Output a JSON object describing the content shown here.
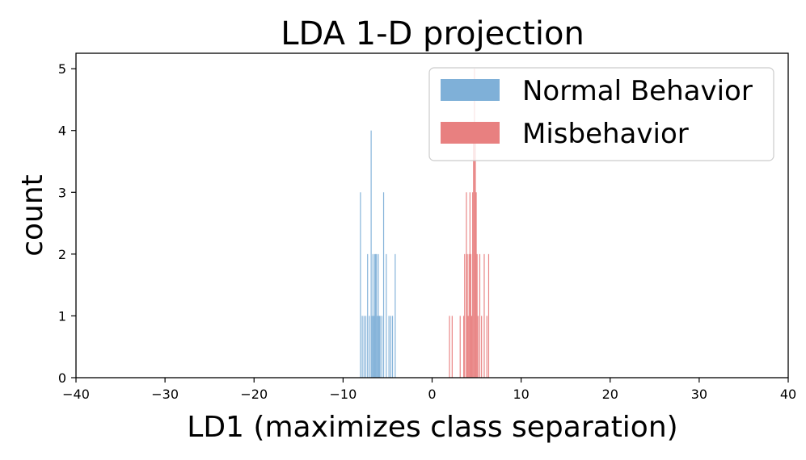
{
  "chart_data": {
    "type": "bar",
    "title": "LDA 1-D projection",
    "xlabel": "LD1 (maximizes class separation)",
    "ylabel": "count",
    "xlim": [
      -40,
      40
    ],
    "ylim": [
      0,
      5.25
    ],
    "xticks": [
      -40,
      -30,
      -20,
      -10,
      0,
      10,
      20,
      30,
      40
    ],
    "xtick_labels": [
      "−40",
      "−30",
      "−20",
      "−10",
      "0",
      "10",
      "20",
      "30",
      "40"
    ],
    "yticks": [
      0,
      1,
      2,
      3,
      4,
      5
    ],
    "ytick_labels": [
      "0",
      "1",
      "2",
      "3",
      "4",
      "5"
    ],
    "legend_position": "top-right",
    "series": [
      {
        "name": "Normal Behavior",
        "color": "#7fb0d8",
        "bin_width": 0.1,
        "bins": [
          {
            "x": -8.1,
            "count": 3
          },
          {
            "x": -7.9,
            "count": 1
          },
          {
            "x": -7.7,
            "count": 1
          },
          {
            "x": -7.5,
            "count": 1
          },
          {
            "x": -7.3,
            "count": 2
          },
          {
            "x": -7.1,
            "count": 1
          },
          {
            "x": -6.9,
            "count": 4
          },
          {
            "x": -6.8,
            "count": 1
          },
          {
            "x": -6.7,
            "count": 2
          },
          {
            "x": -6.6,
            "count": 1
          },
          {
            "x": -6.5,
            "count": 2
          },
          {
            "x": -6.4,
            "count": 2
          },
          {
            "x": -6.3,
            "count": 2
          },
          {
            "x": -6.2,
            "count": 1
          },
          {
            "x": -6.1,
            "count": 2
          },
          {
            "x": -6.0,
            "count": 1
          },
          {
            "x": -5.9,
            "count": 1
          },
          {
            "x": -5.7,
            "count": 1
          },
          {
            "x": -5.5,
            "count": 3
          },
          {
            "x": -5.2,
            "count": 2
          },
          {
            "x": -4.9,
            "count": 1
          },
          {
            "x": -4.7,
            "count": 1
          },
          {
            "x": -4.5,
            "count": 1
          },
          {
            "x": -4.2,
            "count": 2
          }
        ]
      },
      {
        "name": "Misbehavior",
        "color": "#e88080",
        "bin_width": 0.1,
        "bins": [
          {
            "x": 1.9,
            "count": 1
          },
          {
            "x": 2.2,
            "count": 1
          },
          {
            "x": 3.1,
            "count": 1
          },
          {
            "x": 3.5,
            "count": 1
          },
          {
            "x": 3.6,
            "count": 2
          },
          {
            "x": 3.8,
            "count": 3
          },
          {
            "x": 3.9,
            "count": 2
          },
          {
            "x": 4.0,
            "count": 1
          },
          {
            "x": 4.1,
            "count": 2
          },
          {
            "x": 4.2,
            "count": 3
          },
          {
            "x": 4.3,
            "count": 2
          },
          {
            "x": 4.4,
            "count": 1
          },
          {
            "x": 4.5,
            "count": 3
          },
          {
            "x": 4.6,
            "count": 4
          },
          {
            "x": 4.7,
            "count": 5
          },
          {
            "x": 4.8,
            "count": 4
          },
          {
            "x": 4.9,
            "count": 3
          },
          {
            "x": 5.0,
            "count": 2
          },
          {
            "x": 5.1,
            "count": 1
          },
          {
            "x": 5.3,
            "count": 2
          },
          {
            "x": 5.5,
            "count": 1
          },
          {
            "x": 5.8,
            "count": 2
          },
          {
            "x": 6.1,
            "count": 1
          },
          {
            "x": 6.3,
            "count": 2
          }
        ]
      }
    ]
  }
}
